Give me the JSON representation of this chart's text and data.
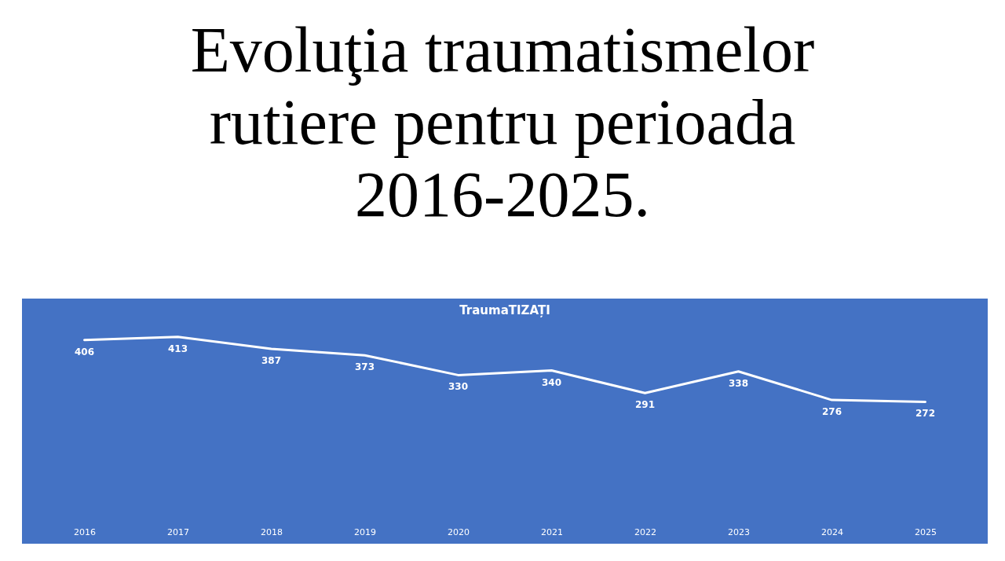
{
  "chart_data": {
    "type": "line",
    "title": "Evoluţia traumatismelor rutiere pentru perioada 2016-2025.",
    "subtitle": "TraumaTIZAȚI",
    "categories": [
      "2016",
      "2017",
      "2018",
      "2019",
      "2020",
      "2021",
      "2022",
      "2023",
      "2024",
      "2025"
    ],
    "series": [
      {
        "color": "#ffffff",
        "values": [
          406,
          413,
          387,
          373,
          330,
          340,
          291,
          338,
          276,
          272
        ]
      }
    ],
    "data_labels": true,
    "grid": false,
    "tick_labels": "x",
    "marker": "none",
    "line_style": "solid"
  }
}
